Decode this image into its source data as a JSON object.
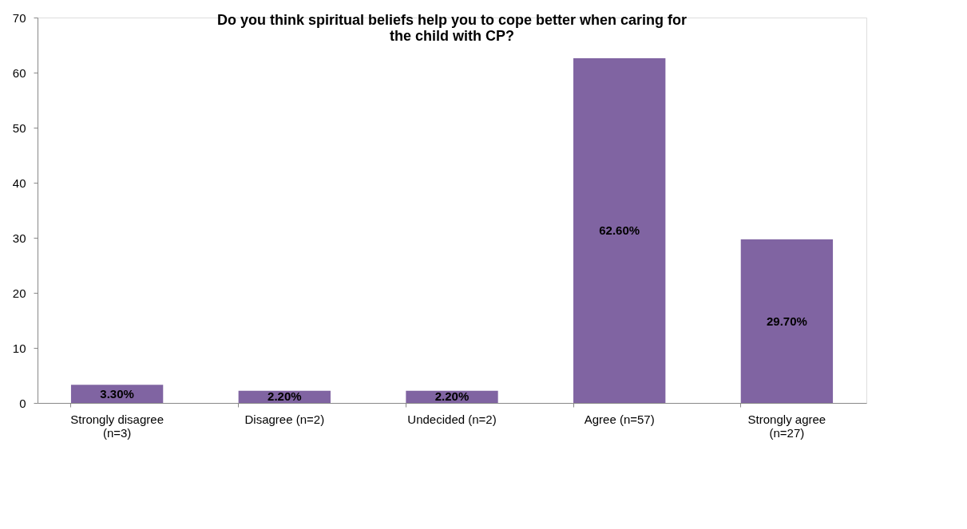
{
  "chart_data": {
    "type": "bar",
    "title": "Do you think spiritual beliefs help you to cope better when caring for the child with CP?",
    "categories": [
      "Strongly disagree (n=3)",
      "Disagree (n=2)",
      "Undecided (n=2)",
      "Agree (n=57)",
      "Strongly agree (n=27)"
    ],
    "values": [
      3.3,
      2.2,
      2.2,
      62.6,
      29.7
    ],
    "value_labels": [
      "3.30%",
      "2.20%",
      "2.20%",
      "62.60%",
      "29.70%"
    ],
    "color": "#8064a2",
    "ylim": [
      0,
      70
    ],
    "yticks": [
      0,
      10,
      20,
      30,
      40,
      50,
      60,
      70
    ],
    "grid": false
  }
}
